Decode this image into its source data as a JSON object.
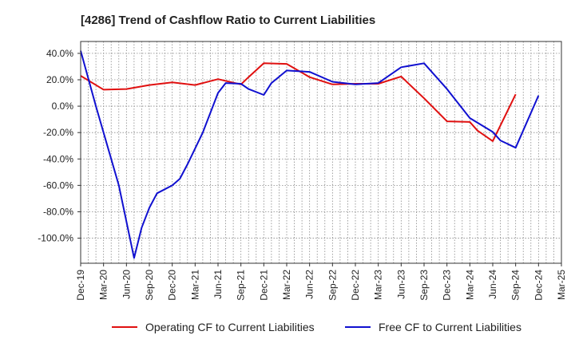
{
  "chart_data": {
    "type": "line",
    "title": "[4286]  Trend of Cashflow Ratio to Current Liabilities",
    "xlabel": "",
    "ylabel": "",
    "x_tick_labels": [
      "Dec-19",
      "Mar-20",
      "Jun-20",
      "Sep-20",
      "Dec-20",
      "Mar-21",
      "Jun-21",
      "Sep-21",
      "Dec-21",
      "Mar-22",
      "Jun-22",
      "Sep-22",
      "Dec-22",
      "Mar-23",
      "Jun-23",
      "Sep-23",
      "Dec-23",
      "Mar-24",
      "Jun-24",
      "Sep-24",
      "Dec-24",
      "Mar-25"
    ],
    "y_tick_labels": [
      "40.0%",
      "20.0%",
      "0.0%",
      "-20.0%",
      "-40.0%",
      "-60.0%",
      "-80.0%",
      "-100.0%"
    ],
    "y_ticks": [
      40,
      20,
      0,
      -20,
      -40,
      -60,
      -80,
      -100
    ],
    "ylim": [
      -119,
      49
    ],
    "grid": true,
    "legend_position": "bottom",
    "series": [
      {
        "name": "Operating CF to Current Liabilities",
        "color": "#e01010",
        "points": [
          [
            0,
            23
          ],
          [
            3,
            12.5
          ],
          [
            6,
            13
          ],
          [
            9,
            16
          ],
          [
            12,
            18
          ],
          [
            15,
            16
          ],
          [
            18,
            20.5
          ],
          [
            21,
            16.5
          ],
          [
            22,
            22
          ],
          [
            24,
            32.5
          ],
          [
            27,
            32
          ],
          [
            30,
            22
          ],
          [
            33,
            16.5
          ],
          [
            36,
            17
          ],
          [
            39,
            17
          ],
          [
            42,
            22.5
          ],
          [
            45,
            6
          ],
          [
            48,
            -11.5
          ],
          [
            51,
            -12
          ],
          [
            52,
            -18.5
          ],
          [
            54,
            -26.5
          ],
          [
            57,
            9
          ]
        ]
      },
      {
        "name": "Free CF to Current Liabilities",
        "color": "#1010d0",
        "points": [
          [
            0,
            42
          ],
          [
            2,
            0
          ],
          [
            5,
            -60
          ],
          [
            7,
            -115
          ],
          [
            8,
            -92
          ],
          [
            9,
            -77
          ],
          [
            10,
            -66
          ],
          [
            12,
            -60
          ],
          [
            13,
            -55
          ],
          [
            14,
            -44
          ],
          [
            16,
            -20
          ],
          [
            18,
            10
          ],
          [
            19,
            17.5
          ],
          [
            21,
            17
          ],
          [
            22,
            13
          ],
          [
            24,
            8.5
          ],
          [
            25,
            17.5
          ],
          [
            27,
            27
          ],
          [
            30,
            26
          ],
          [
            33,
            18.5
          ],
          [
            36,
            16.5
          ],
          [
            39,
            17.5
          ],
          [
            42,
            29.5
          ],
          [
            45,
            32.5
          ],
          [
            48,
            13
          ],
          [
            51,
            -9
          ],
          [
            54,
            -19.5
          ],
          [
            55,
            -26
          ],
          [
            57,
            -31.5
          ],
          [
            60,
            8
          ]
        ]
      }
    ]
  }
}
